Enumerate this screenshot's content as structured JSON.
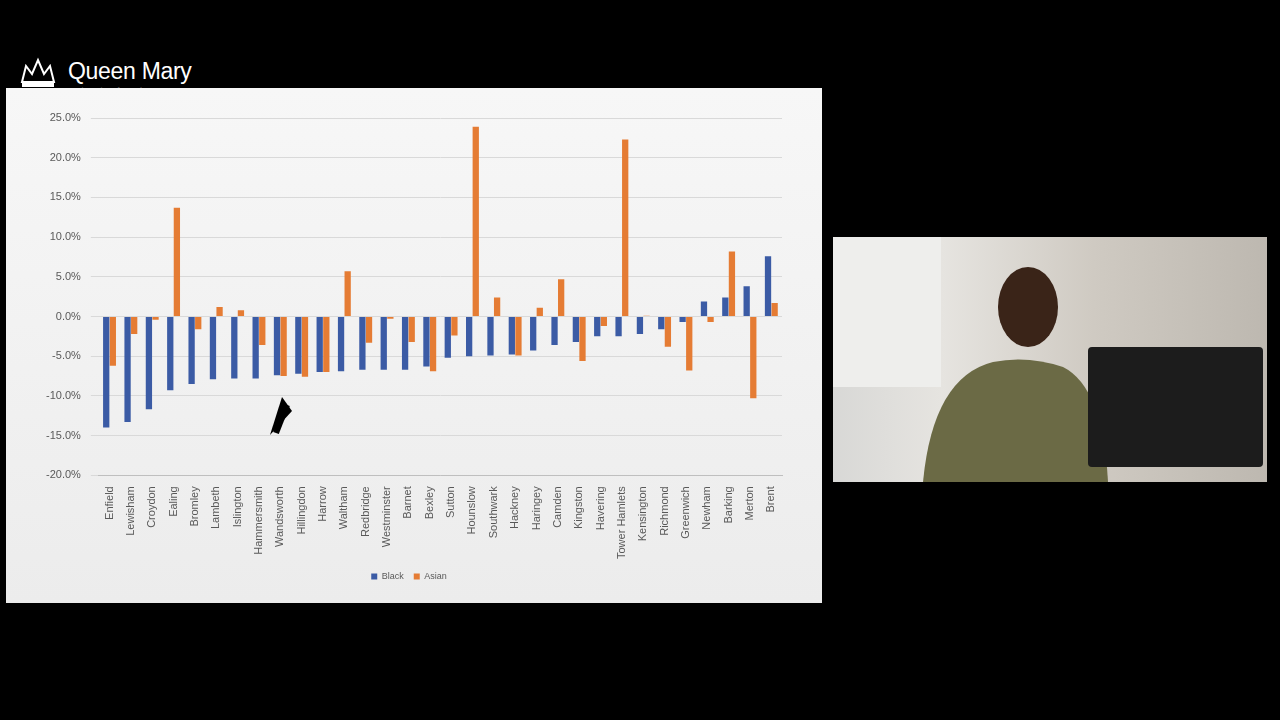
{
  "header": {
    "logo_text": "Queen Mary",
    "logo_subtext": "University of London"
  },
  "chart_data": {
    "type": "bar",
    "categories": [
      "Enfield",
      "Lewisham",
      "Croydon",
      "Ealing",
      "Bromley",
      "Lambeth",
      "Islington",
      "Hammersmith",
      "Wandsworth",
      "Hillingdon",
      "Harrow",
      "Waltham",
      "Redbridge",
      "Westminster",
      "Barnet",
      "Bexley",
      "Sutton",
      "Hounslow",
      "Southwark",
      "Hackney",
      "Haringey",
      "Camden",
      "Kingston",
      "Havering",
      "Tower Hamlets",
      "Kensington",
      "Richmond",
      "Greenwich",
      "Newham",
      "Barking",
      "Merton",
      "Brent"
    ],
    "series": [
      {
        "name": "Black",
        "color": "#3b5ba5",
        "values": [
          -14.0,
          -13.3,
          -11.7,
          -9.3,
          -8.5,
          -7.9,
          -7.8,
          -7.8,
          -7.4,
          -7.2,
          -7.0,
          -6.9,
          -6.7,
          -6.7,
          -6.7,
          -6.3,
          -5.2,
          -5.0,
          -4.9,
          -4.8,
          -4.3,
          -3.6,
          -3.2,
          -2.5,
          -2.5,
          -2.2,
          -1.6,
          -0.7,
          1.9,
          2.4,
          3.8,
          7.6
        ]
      },
      {
        "name": "Asian",
        "color": "#e57c34",
        "values": [
          -6.2,
          -2.2,
          -0.4,
          13.7,
          -1.6,
          1.2,
          0.8,
          -3.6,
          -7.5,
          -7.6,
          -7.0,
          5.7,
          -3.3,
          -0.3,
          -3.2,
          -6.9,
          -2.4,
          23.9,
          2.4,
          -4.9,
          1.1,
          4.7,
          -5.6,
          -1.2,
          22.3,
          0.1,
          -3.8,
          -6.8,
          -0.7,
          8.2,
          -10.3,
          1.7
        ]
      }
    ],
    "ylim": [
      -20,
      25
    ],
    "yticks": [
      {
        "value": -20,
        "label": "-20.0%"
      },
      {
        "value": -15,
        "label": "-15.0%"
      },
      {
        "value": -10,
        "label": "-10.0%"
      },
      {
        "value": -5,
        "label": "-5.0%"
      },
      {
        "value": 0,
        "label": "0.0%"
      },
      {
        "value": 5,
        "label": "5.0%"
      },
      {
        "value": 10,
        "label": "10.0%"
      },
      {
        "value": 15,
        "label": "15.0%"
      },
      {
        "value": 20,
        "label": "20.0%"
      },
      {
        "value": 25,
        "label": "25.0%"
      }
    ],
    "grid": true,
    "legend": "bottom"
  }
}
